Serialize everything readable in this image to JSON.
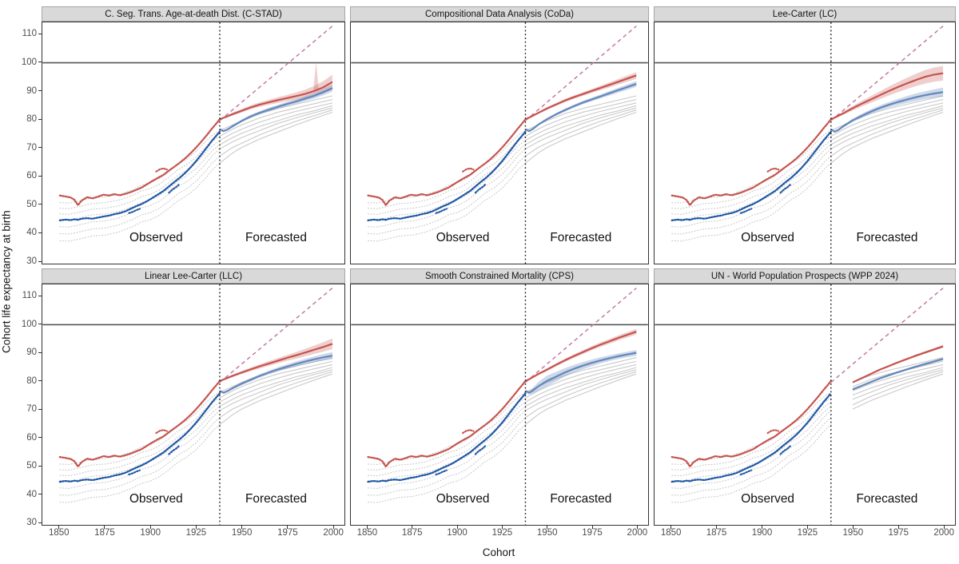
{
  "figure": {
    "x_label": "Cohort",
    "y_label": "Cohort life expectancy at birth"
  },
  "colors": {
    "red": "#c5534e",
    "red_ribbon": "rgba(197,83,78,0.28)",
    "blue_obs": "#1f57a5",
    "blue_fc": "#6287bb",
    "blue_ribbon": "rgba(98,135,187,0.32)",
    "gray": "#c9c9c9",
    "trend": "#c478a5",
    "reference": "#555555",
    "split_line": "#1a1a1a",
    "strip_bg": "#d9d9d9",
    "axis_text": "#4d4d4d"
  },
  "chart_data": {
    "type": "line",
    "x_range": [
      1840.5,
      2006.5
    ],
    "y_range": [
      28.9,
      114.3
    ],
    "x_ticks": [
      1850,
      1875,
      1900,
      1925,
      1950,
      1975,
      2000
    ],
    "y_ticks": [
      110,
      100,
      90,
      80,
      70,
      60,
      50,
      40,
      30
    ],
    "split_year": 1938,
    "reference_line_y": 100,
    "trend_dashed": {
      "x": [
        1938,
        2000
      ],
      "y": [
        79.5,
        113
      ]
    },
    "annotations": {
      "observed": {
        "label": "Observed",
        "x": 1903,
        "y": 36.8
      },
      "forecasted": {
        "label": "Forecasted",
        "x": 1969,
        "y": 36.8
      }
    },
    "observed": {
      "years": [
        1850,
        1853,
        1856,
        1858,
        1860,
        1862,
        1865,
        1868,
        1871,
        1874,
        1877,
        1880,
        1883,
        1886,
        1889,
        1892,
        1895,
        1898,
        1901,
        1904,
        1907,
        1910,
        1913,
        1916,
        1919,
        1922,
        1925,
        1928,
        1931,
        1934,
        1936,
        1938
      ],
      "red": [
        53.0,
        52.7,
        52.3,
        51.5,
        49.6,
        51.2,
        52.4,
        52.0,
        52.6,
        53.3,
        53.0,
        53.5,
        53.1,
        53.6,
        54.2,
        55.0,
        55.8,
        57.0,
        58.2,
        59.3,
        60.3,
        61.8,
        63.2,
        64.6,
        66.2,
        68.0,
        70.0,
        72.2,
        74.5,
        76.9,
        78.4,
        80.0
      ],
      "blue": [
        44.2,
        44.5,
        44.3,
        44.6,
        44.4,
        44.8,
        45.0,
        44.8,
        45.2,
        45.6,
        45.9,
        46.4,
        46.8,
        47.4,
        48.3,
        49.2,
        50.0,
        51.0,
        52.2,
        53.4,
        54.6,
        56.2,
        57.8,
        59.3,
        61.0,
        63.0,
        65.2,
        67.6,
        70.1,
        72.6,
        74.1,
        75.6
      ],
      "red_outliers": [
        {
          "years": [
            1903,
            1905,
            1907,
            1909
          ],
          "values": [
            61.5,
            62.3,
            62.6,
            62.2
          ]
        }
      ],
      "blue_outliers": [
        {
          "years": [
            1888,
            1890,
            1892,
            1894
          ],
          "values": [
            46.8,
            47.2,
            47.8,
            48.3
          ]
        },
        {
          "years": [
            1910,
            1912,
            1914,
            1916
          ],
          "values": [
            54.0,
            55.2,
            56.0,
            57.2
          ]
        }
      ]
    },
    "gray_series": {
      "years": [
        1850,
        1860,
        1875,
        1890,
        1900,
        1910,
        1920,
        1930,
        1938,
        1945,
        1950,
        1960,
        1970,
        1980,
        1990,
        2000
      ],
      "series": [
        [
          50.5,
          51.0,
          52.5,
          55.0,
          57.5,
          61.5,
          66.0,
          72.0,
          76.0,
          78.0,
          79.5,
          82.0,
          83.8,
          85.3,
          86.8,
          88.3
        ],
        [
          48.5,
          49.0,
          50.5,
          53.0,
          55.5,
          59.5,
          64.0,
          70.0,
          74.0,
          76.5,
          78.0,
          80.5,
          82.5,
          84.0,
          85.5,
          87.0
        ],
        [
          46.5,
          47.0,
          48.5,
          51.0,
          53.5,
          57.5,
          62.0,
          68.0,
          72.5,
          75.0,
          76.5,
          79.0,
          81.0,
          82.8,
          84.3,
          85.8
        ],
        [
          44.5,
          45.0,
          46.5,
          49.0,
          51.5,
          55.5,
          60.0,
          66.0,
          71.0,
          73.5,
          75.0,
          77.5,
          79.5,
          81.5,
          83.0,
          84.8
        ],
        [
          42.0,
          42.5,
          44.0,
          47.0,
          49.5,
          53.5,
          58.0,
          64.0,
          69.5,
          72.0,
          73.5,
          76.0,
          78.5,
          80.5,
          82.3,
          84.0
        ],
        [
          39.5,
          40.0,
          41.5,
          44.5,
          47.0,
          51.0,
          55.5,
          61.5,
          67.0,
          70.0,
          71.5,
          74.5,
          77.0,
          79.3,
          81.3,
          83.3
        ],
        [
          37.0,
          37.5,
          39.0,
          42.0,
          44.5,
          48.5,
          53.0,
          59.0,
          64.5,
          68.0,
          70.0,
          73.0,
          75.5,
          78.0,
          80.3,
          82.5
        ]
      ]
    },
    "panels": [
      {
        "title": "C. Seg. Trans. Age-at-death Dist. (C-STAD)",
        "forecast_start": 1938,
        "forecast": {
          "years": [
            1938,
            1940,
            1942,
            1945,
            1950,
            1955,
            1960,
            1965,
            1970,
            1975,
            1980,
            1985,
            1990,
            1995,
            2000
          ],
          "red": [
            80,
            80.5,
            81,
            81.8,
            83,
            84.2,
            85.2,
            86,
            86.8,
            87.5,
            88.2,
            89,
            90,
            91.3,
            93.2
          ],
          "red_hw": [
            0.2,
            0.3,
            0.4,
            0.5,
            0.6,
            0.7,
            0.8,
            0.9,
            1.0,
            1.1,
            1.3,
            1.5,
            1.8,
            2.2,
            2.6
          ],
          "blue": [
            76.5,
            75.8,
            76.3,
            77.5,
            79.4,
            81,
            82.3,
            83.4,
            84.4,
            85.4,
            86.3,
            87.3,
            88.3,
            89.6,
            91
          ],
          "blue_hw": [
            0.2,
            0.3,
            0.3,
            0.4,
            0.5,
            0.6,
            0.6,
            0.7,
            0.7,
            0.8,
            0.8,
            0.9,
            1.0,
            1.1,
            1.2
          ]
        },
        "spike": {
          "year": 1991,
          "top": 100.3,
          "width": 3
        }
      },
      {
        "title": "Compositional Data Analysis (CoDa)",
        "forecast_start": 1938,
        "forecast": {
          "years": [
            1938,
            1940,
            1942,
            1945,
            1950,
            1955,
            1960,
            1965,
            1970,
            1975,
            1980,
            1985,
            1990,
            1995,
            2000
          ],
          "red": [
            80,
            80.6,
            81.2,
            82.2,
            83.8,
            85.2,
            86.6,
            87.8,
            88.9,
            90,
            91.1,
            92.2,
            93.3,
            94.4,
            95.5
          ],
          "red_hw": [
            0.2,
            0.25,
            0.3,
            0.35,
            0.45,
            0.5,
            0.55,
            0.6,
            0.65,
            0.7,
            0.8,
            0.9,
            1.0,
            1.1,
            1.2
          ],
          "blue": [
            76.5,
            75.8,
            76.5,
            78,
            80,
            81.7,
            83.2,
            84.6,
            85.9,
            87,
            88.1,
            89.2,
            90.3,
            91.4,
            92.5
          ],
          "blue_hw": [
            0.2,
            0.25,
            0.3,
            0.35,
            0.4,
            0.45,
            0.5,
            0.55,
            0.6,
            0.65,
            0.7,
            0.8,
            0.85,
            0.95,
            1.0
          ]
        }
      },
      {
        "title": "Lee-Carter (LC)",
        "forecast_start": 1938,
        "forecast": {
          "years": [
            1938,
            1940,
            1942,
            1945,
            1950,
            1955,
            1960,
            1965,
            1970,
            1975,
            1980,
            1985,
            1990,
            1995,
            2000
          ],
          "red": [
            80,
            80.6,
            81.2,
            82.2,
            83.9,
            85.5,
            87,
            88.5,
            90,
            91.4,
            92.7,
            93.9,
            95,
            95.8,
            96.3
          ],
          "red_hw": [
            0.2,
            0.3,
            0.4,
            0.6,
            0.8,
            1.0,
            1.2,
            1.4,
            1.6,
            1.8,
            2.0,
            2.2,
            2.4,
            2.5,
            2.6
          ],
          "blue": [
            76.5,
            75.6,
            76.2,
            77.6,
            79.6,
            81.2,
            82.7,
            84,
            85.1,
            86.1,
            87,
            87.8,
            88.5,
            89.1,
            89.6
          ],
          "blue_hw": [
            0.2,
            0.3,
            0.4,
            0.5,
            0.6,
            0.7,
            0.8,
            0.9,
            1.0,
            1.1,
            1.2,
            1.3,
            1.4,
            1.5,
            1.6
          ]
        }
      },
      {
        "title": "Linear Lee-Carter (LLC)",
        "forecast_start": 1938,
        "forecast": {
          "years": [
            1938,
            1940,
            1942,
            1945,
            1950,
            1955,
            1960,
            1965,
            1970,
            1975,
            1980,
            1985,
            1990,
            1995,
            2000
          ],
          "red": [
            80,
            80.5,
            81,
            81.8,
            83,
            84.1,
            85.2,
            86.2,
            87.2,
            88.2,
            89.1,
            90.1,
            91.1,
            92.1,
            93.2
          ],
          "red_hw": [
            0.2,
            0.3,
            0.35,
            0.45,
            0.55,
            0.65,
            0.75,
            0.85,
            0.95,
            1.05,
            1.2,
            1.35,
            1.5,
            1.7,
            1.9
          ],
          "blue": [
            76.5,
            75.8,
            76.3,
            77.4,
            79,
            80.4,
            81.8,
            83,
            84.1,
            85.1,
            86,
            86.9,
            87.7,
            88.4,
            89
          ],
          "blue_hw": [
            0.2,
            0.25,
            0.3,
            0.4,
            0.5,
            0.55,
            0.6,
            0.7,
            0.75,
            0.8,
            0.9,
            0.95,
            1.05,
            1.15,
            1.25
          ]
        }
      },
      {
        "title": "Smooth Constrained Mortality (CPS)",
        "forecast_start": 1938,
        "forecast": {
          "years": [
            1938,
            1940,
            1942,
            1945,
            1950,
            1955,
            1960,
            1965,
            1970,
            1975,
            1980,
            1985,
            1990,
            1995,
            2000
          ],
          "red": [
            80,
            80.6,
            81.3,
            82.4,
            84,
            85.7,
            87.3,
            88.8,
            90.2,
            91.6,
            92.9,
            94.1,
            95.3,
            96.4,
            97.5
          ],
          "red_hw": [
            0.2,
            0.25,
            0.3,
            0.4,
            0.5,
            0.55,
            0.6,
            0.65,
            0.7,
            0.75,
            0.8,
            0.85,
            0.9,
            0.95,
            1.0
          ],
          "blue": [
            76.5,
            75.8,
            76.5,
            78,
            80,
            81.5,
            83,
            84.3,
            85.4,
            86.4,
            87.3,
            88.1,
            88.8,
            89.4,
            90
          ],
          "blue_hw": [
            0.3,
            0.6,
            1.0,
            1.5,
            1.9,
            1.7,
            1.5,
            1.4,
            1.3,
            1.2,
            1.1,
            1.0,
            1.0,
            1.0,
            1.0
          ]
        }
      },
      {
        "title": "UN - World Population Prospects (WPP 2024)",
        "forecast_start": 1950,
        "forecast": {
          "years": [
            1950,
            1955,
            1960,
            1965,
            1970,
            1975,
            1980,
            1985,
            1990,
            1995,
            2000
          ],
          "red": [
            79.5,
            81,
            82.5,
            84,
            85.3,
            86.6,
            87.8,
            89,
            90.1,
            91.2,
            92.3
          ],
          "red_hw": [
            0.2,
            0.25,
            0.3,
            0.3,
            0.35,
            0.35,
            0.4,
            0.4,
            0.45,
            0.45,
            0.5
          ],
          "blue": [
            77,
            78.3,
            79.6,
            80.9,
            82,
            83.1,
            84.1,
            85.1,
            86,
            86.9,
            87.8
          ],
          "blue_hw": [
            0.2,
            0.25,
            0.3,
            0.3,
            0.35,
            0.35,
            0.4,
            0.4,
            0.45,
            0.45,
            0.5
          ]
        }
      }
    ]
  }
}
